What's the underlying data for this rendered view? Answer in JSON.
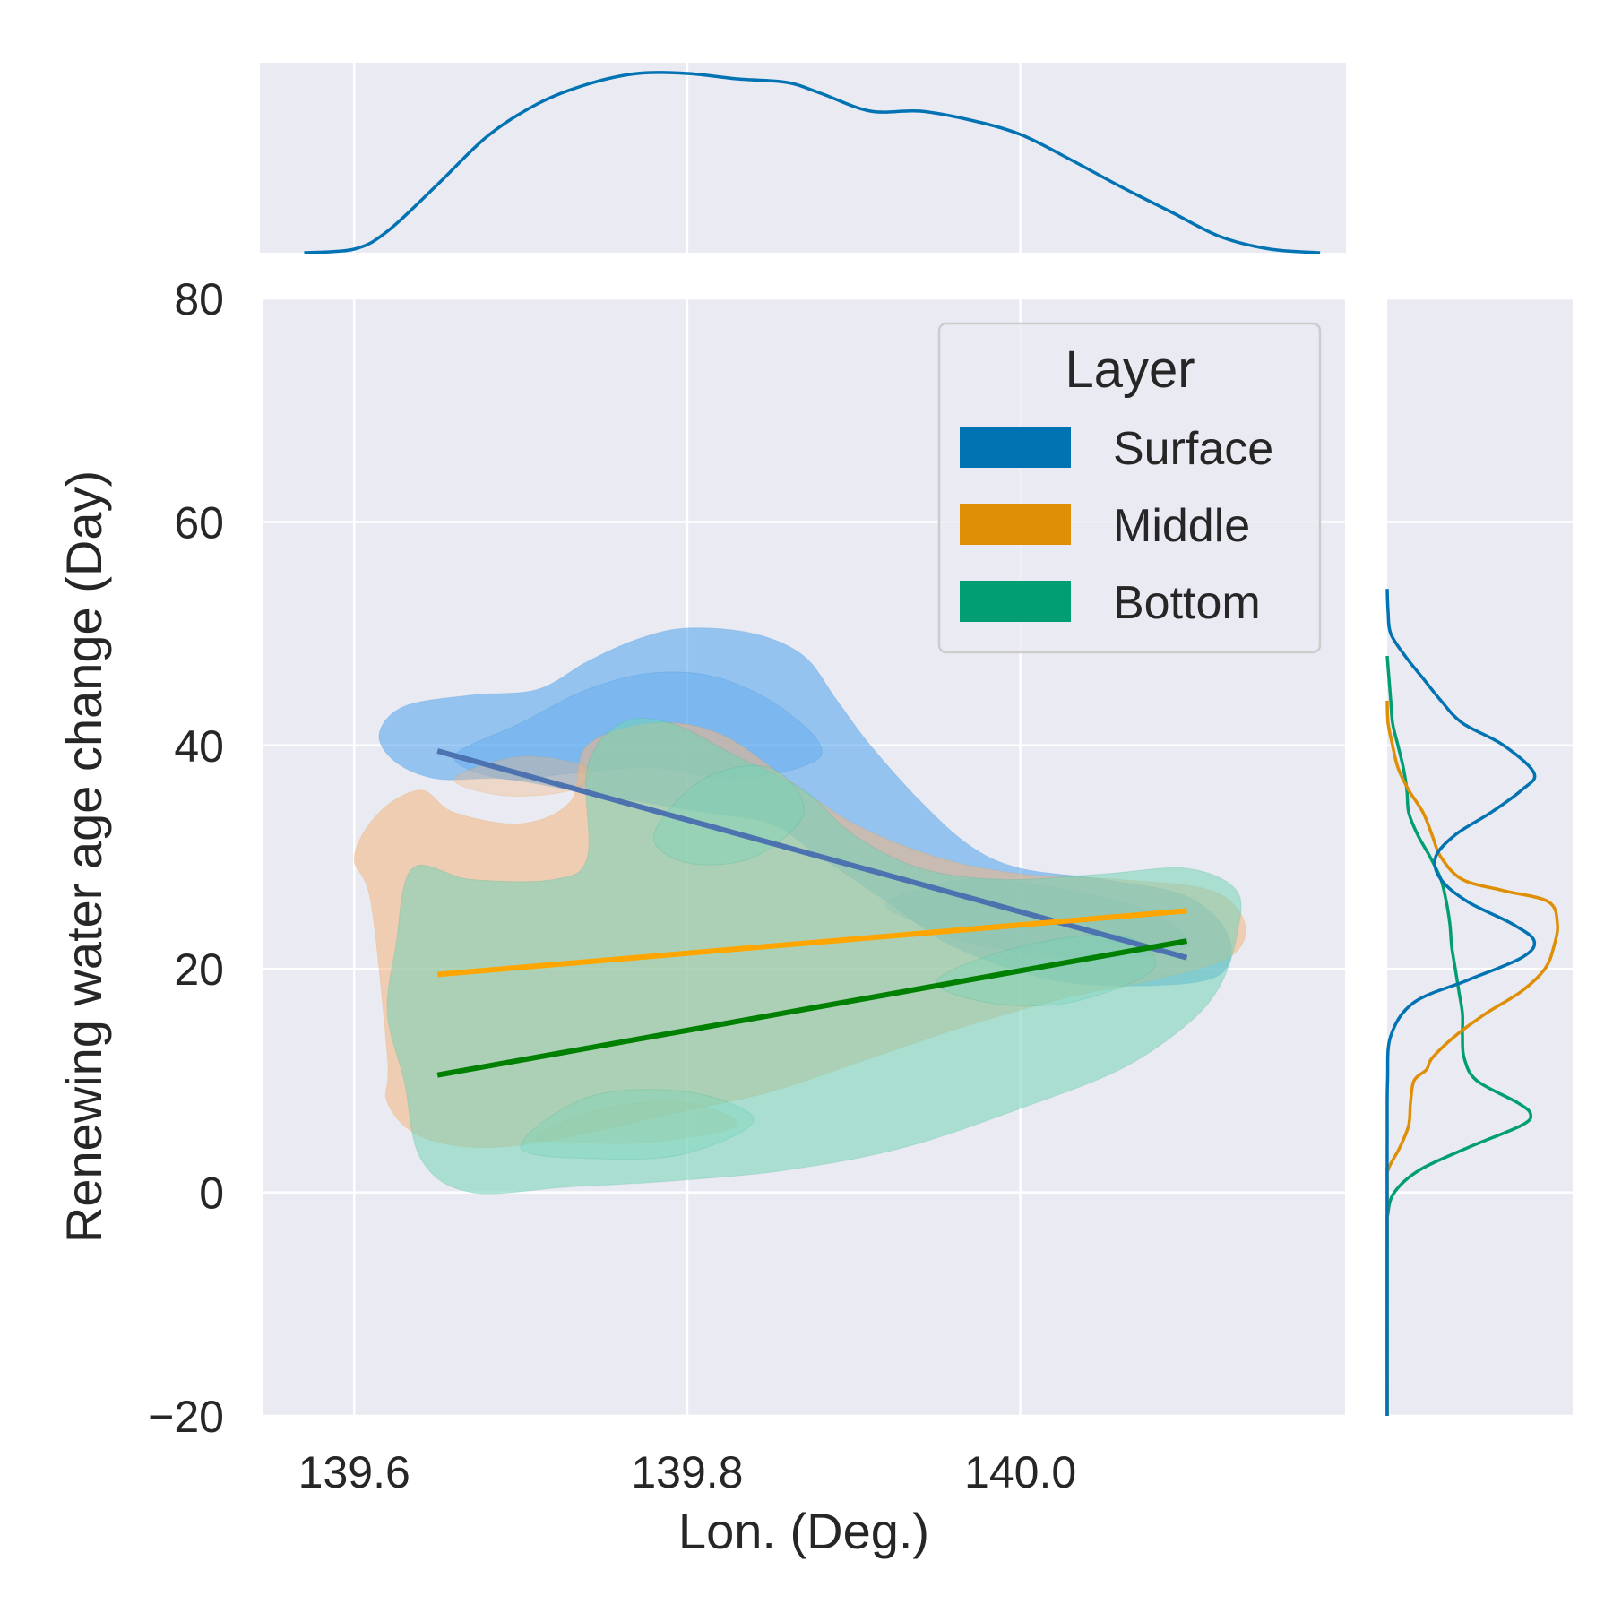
{
  "chart_data": {
    "type": "area",
    "subtype": "joint-kde-with-regression",
    "title": "",
    "xlabel": "Lon. (Deg.)",
    "ylabel": "Renewing water age change (Day)",
    "xlim": [
      139.545,
      140.195
    ],
    "ylim": [
      -20,
      80
    ],
    "xticks": [
      139.6,
      139.8,
      140.0
    ],
    "xtick_labels": [
      "139.6",
      "139.8",
      "140.0"
    ],
    "yticks": [
      -20,
      0,
      20,
      40,
      60,
      80
    ],
    "ytick_labels": [
      "−20",
      "0",
      "20",
      "40",
      "60",
      "80"
    ],
    "grid": true,
    "background": "#eaeaf2",
    "legend": {
      "title": "Layer",
      "placement": "top-right",
      "entries": [
        {
          "label": "Surface",
          "color": "#0173b2"
        },
        {
          "label": "Middle",
          "color": "#de8f05"
        },
        {
          "label": "Bottom",
          "color": "#029e73"
        }
      ]
    },
    "series": [
      {
        "name": "Surface",
        "color": "#0173b2",
        "kde_fill": "#4ea3ee",
        "regression": {
          "color": "#4c72b0",
          "x": [
            139.65,
            140.1
          ],
          "y": [
            39.5,
            21.0
          ]
        },
        "density_regions": [
          [
            [
              139.625,
              38.5
            ],
            [
              139.615,
              41
            ],
            [
              139.63,
              43.5
            ],
            [
              139.67,
              44.5
            ],
            [
              139.71,
              45
            ],
            [
              139.74,
              47.5
            ],
            [
              139.77,
              49.5
            ],
            [
              139.8,
              50.5
            ],
            [
              139.84,
              50
            ],
            [
              139.87,
              48
            ],
            [
              139.89,
              44
            ],
            [
              139.91,
              40
            ],
            [
              139.94,
              35
            ],
            [
              139.97,
              31
            ],
            [
              140.0,
              29
            ],
            [
              140.05,
              28
            ],
            [
              140.1,
              26.5
            ],
            [
              140.125,
              23
            ],
            [
              140.12,
              19.5
            ],
            [
              140.08,
              18.5
            ],
            [
              140.02,
              19
            ],
            [
              139.96,
              22
            ],
            [
              139.92,
              26
            ],
            [
              139.88,
              30
            ],
            [
              139.85,
              33
            ],
            [
              139.81,
              34
            ],
            [
              139.77,
              35
            ],
            [
              139.73,
              36
            ],
            [
              139.69,
              37
            ],
            [
              139.65,
              37
            ]
          ],
          [
            [
              139.66,
              39
            ],
            [
              139.7,
              42
            ],
            [
              139.74,
              45
            ],
            [
              139.78,
              46.5
            ],
            [
              139.82,
              46
            ],
            [
              139.86,
              43
            ],
            [
              139.88,
              39
            ],
            [
              139.83,
              37
            ],
            [
              139.78,
              38
            ],
            [
              139.73,
              37.5
            ],
            [
              139.69,
              37
            ]
          ],
          [
            [
              139.92,
              26
            ],
            [
              139.97,
              28
            ],
            [
              140.03,
              27
            ],
            [
              140.08,
              25
            ],
            [
              140.1,
              22
            ],
            [
              140.05,
              21
            ],
            [
              139.98,
              22
            ],
            [
              139.94,
              24
            ]
          ]
        ],
        "marginal_x": {
          "x": [
            139.57,
            139.6,
            139.62,
            139.65,
            139.68,
            139.71,
            139.74,
            139.77,
            139.8,
            139.83,
            139.86,
            139.88,
            139.91,
            139.94,
            139.97,
            140.0,
            140.03,
            140.06,
            140.09,
            140.12,
            140.15,
            140.18
          ],
          "density": [
            0,
            0.02,
            0.12,
            0.38,
            0.65,
            0.83,
            0.94,
            1.0,
            1.0,
            0.97,
            0.95,
            0.89,
            0.79,
            0.79,
            0.74,
            0.66,
            0.52,
            0.37,
            0.23,
            0.09,
            0.02,
            0
          ]
        },
        "marginal_y": {
          "y": [
            -20,
            0,
            5,
            10,
            14,
            17,
            19,
            21,
            22.5,
            24,
            26,
            28,
            30,
            32,
            34,
            36,
            37.5,
            40,
            42,
            44,
            46,
            48,
            50,
            52,
            54
          ],
          "density": [
            0,
            0,
            0,
            0.002,
            0.02,
            0.15,
            0.45,
            0.75,
            0.82,
            0.7,
            0.45,
            0.3,
            0.27,
            0.38,
            0.58,
            0.75,
            0.82,
            0.65,
            0.42,
            0.3,
            0.2,
            0.1,
            0.02,
            0.005,
            0
          ]
        }
      },
      {
        "name": "Middle",
        "color": "#de8f05",
        "kde_fill": "#f3b47f",
        "regression": {
          "color": "#ffa500",
          "x": [
            139.65,
            140.1
          ],
          "y": [
            19.5,
            25.2
          ]
        },
        "density_regions": [
          [
            [
              139.615,
              34
            ],
            [
              139.6,
              30
            ],
            [
              139.61,
              26
            ],
            [
              139.62,
              12
            ],
            [
              139.62,
              8
            ],
            [
              139.64,
              5
            ],
            [
              139.68,
              4
            ],
            [
              139.73,
              5
            ],
            [
              139.79,
              7
            ],
            [
              139.85,
              9
            ],
            [
              139.91,
              12
            ],
            [
              139.97,
              15
            ],
            [
              140.03,
              17.5
            ],
            [
              140.08,
              19
            ],
            [
              140.125,
              21
            ],
            [
              140.135,
              24
            ],
            [
              140.115,
              27
            ],
            [
              140.06,
              28
            ],
            [
              140.0,
              28.5
            ],
            [
              139.95,
              30
            ],
            [
              139.9,
              33
            ],
            [
              139.86,
              37
            ],
            [
              139.82,
              41
            ],
            [
              139.78,
              42
            ],
            [
              139.74,
              40
            ],
            [
              139.73,
              35
            ],
            [
              139.7,
              33
            ],
            [
              139.66,
              34
            ],
            [
              139.64,
              36
            ]
          ],
          [
            [
              139.71,
              5
            ],
            [
              139.75,
              7.5
            ],
            [
              139.8,
              8
            ],
            [
              139.83,
              6
            ],
            [
              139.78,
              4.5
            ],
            [
              139.73,
              4.5
            ]
          ],
          [
            [
              139.66,
              37
            ],
            [
              139.7,
              39
            ],
            [
              139.74,
              38
            ],
            [
              139.73,
              36
            ],
            [
              139.69,
              35.5
            ]
          ]
        ],
        "marginal_y": {
          "y": [
            -20,
            0,
            2,
            4,
            6,
            8,
            10,
            11,
            12,
            14,
            16,
            18,
            20,
            22,
            24,
            26,
            27,
            28,
            30,
            32,
            34,
            36,
            38,
            40,
            42,
            44
          ],
          "density": [
            0,
            0,
            0.005,
            0.07,
            0.12,
            0.13,
            0.15,
            0.22,
            0.25,
            0.38,
            0.55,
            0.75,
            0.88,
            0.93,
            0.95,
            0.9,
            0.65,
            0.42,
            0.3,
            0.25,
            0.2,
            0.12,
            0.06,
            0.03,
            0.005,
            0
          ]
        }
      },
      {
        "name": "Bottom",
        "color": "#029e73",
        "kde_fill": "#73d4b6",
        "regression": {
          "color": "#008000",
          "x": [
            139.65,
            140.1
          ],
          "y": [
            10.5,
            22.5
          ]
        },
        "density_regions": [
          [
            [
              139.635,
              29
            ],
            [
              139.625,
              22
            ],
            [
              139.62,
              16
            ],
            [
              139.63,
              10
            ],
            [
              139.64,
              3
            ],
            [
              139.67,
              0
            ],
            [
              139.73,
              0.5
            ],
            [
              139.79,
              1
            ],
            [
              139.86,
              2
            ],
            [
              139.93,
              4
            ],
            [
              140.0,
              7.5
            ],
            [
              140.06,
              11
            ],
            [
              140.1,
              15
            ],
            [
              140.12,
              18.5
            ],
            [
              140.13,
              23
            ],
            [
              140.13,
              27
            ],
            [
              140.1,
              29
            ],
            [
              140.05,
              28.5
            ],
            [
              139.99,
              28
            ],
            [
              139.94,
              29
            ],
            [
              139.9,
              32
            ],
            [
              139.87,
              36
            ],
            [
              139.83,
              39
            ],
            [
              139.79,
              42
            ],
            [
              139.76,
              42
            ],
            [
              139.74,
              38
            ],
            [
              139.74,
              30
            ],
            [
              139.72,
              28
            ],
            [
              139.67,
              28
            ]
          ],
          [
            [
              139.7,
              4
            ],
            [
              139.74,
              8.5
            ],
            [
              139.8,
              9
            ],
            [
              139.84,
              6.5
            ],
            [
              139.8,
              3.5
            ],
            [
              139.75,
              3
            ]
          ],
          [
            [
              139.78,
              32
            ],
            [
              139.81,
              37
            ],
            [
              139.85,
              38
            ],
            [
              139.87,
              34
            ],
            [
              139.84,
              30
            ],
            [
              139.8,
              29.5
            ]
          ],
          [
            [
              139.95,
              19
            ],
            [
              140.0,
              22
            ],
            [
              140.06,
              23
            ],
            [
              140.08,
              20
            ],
            [
              140.03,
              17
            ],
            [
              139.98,
              17
            ]
          ]
        ],
        "marginal_y": {
          "y": [
            -20,
            -4,
            -2,
            0,
            2,
            4,
            6,
            7,
            8,
            10,
            12,
            14,
            16,
            18,
            20,
            22,
            24,
            26,
            28,
            30,
            32,
            34,
            36,
            38,
            40,
            42,
            44,
            46,
            48
          ],
          "density": [
            0,
            0,
            0.003,
            0.04,
            0.18,
            0.45,
            0.75,
            0.8,
            0.73,
            0.5,
            0.43,
            0.42,
            0.42,
            0.4,
            0.38,
            0.36,
            0.35,
            0.33,
            0.3,
            0.24,
            0.17,
            0.12,
            0.11,
            0.09,
            0.06,
            0.03,
            0.02,
            0.01,
            0
          ]
        }
      }
    ]
  }
}
